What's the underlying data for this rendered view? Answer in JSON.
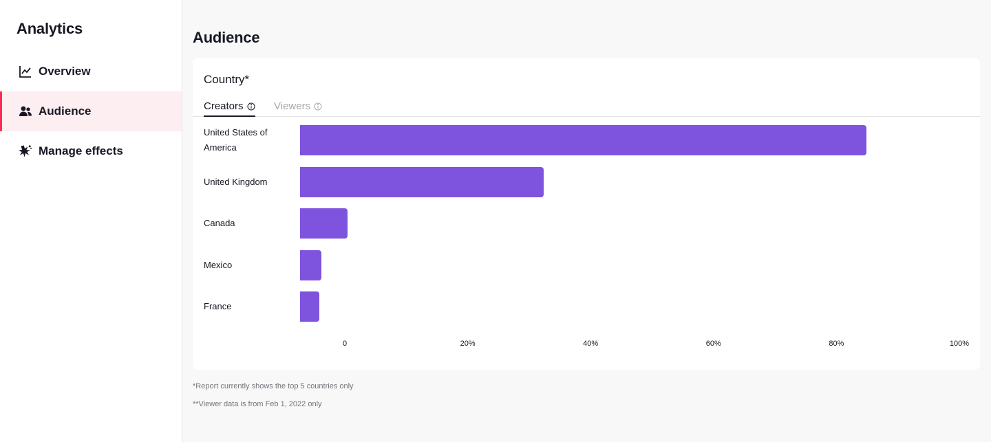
{
  "sidebar": {
    "title": "Analytics",
    "items": [
      {
        "label": "Overview",
        "icon": "line-chart-icon"
      },
      {
        "label": "Audience",
        "icon": "users-icon"
      },
      {
        "label": "Manage effects",
        "icon": "effects-icon"
      }
    ],
    "active": "Audience"
  },
  "main": {
    "title": "Audience",
    "card": {
      "title": "Country*",
      "tabs": [
        {
          "label": "Creators",
          "active": true
        },
        {
          "label": "Viewers",
          "active": false
        }
      ]
    },
    "footnotes": [
      "*Report currently shows the top 5 countries only",
      "**Viewer data is from Feb 1, 2022 only"
    ]
  },
  "colors": {
    "bar": "#7e53de",
    "accent": "#fe2c55",
    "active_bg": "#fdeef1"
  },
  "chart_data": {
    "type": "bar",
    "orientation": "horizontal",
    "categories": [
      "United States of America",
      "United Kingdom",
      "Canada",
      "Mexico",
      "France"
    ],
    "values": [
      84.9,
      32.4,
      0.5,
      -3.8,
      -4.1
    ],
    "xlim": [
      0,
      100
    ],
    "xticks": [
      "0",
      "20%",
      "40%",
      "60%",
      "80%",
      "100%"
    ],
    "xtick_values": [
      0,
      20,
      40,
      60,
      80,
      100
    ]
  }
}
